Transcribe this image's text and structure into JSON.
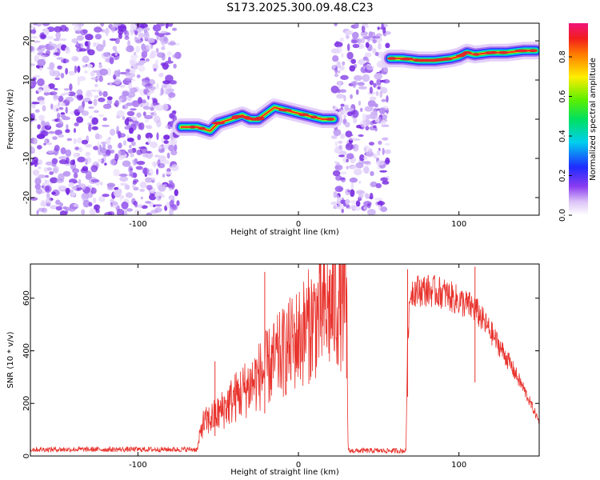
{
  "title": "S173.2025.300.09.48.C23",
  "chart_data": [
    {
      "type": "heatmap",
      "name": "spectrogram",
      "xlabel": "Height of straight line (km)",
      "ylabel": "Frequency (Hz)",
      "xlim": [
        -167,
        150
      ],
      "ylim": [
        -24.5,
        24.5
      ],
      "xticks": [
        -100,
        0,
        100
      ],
      "yticks": [
        -20,
        -10,
        0,
        10,
        20
      ],
      "noise_regions": [
        [
          -167,
          -75
        ],
        [
          22,
          56
        ]
      ],
      "signal_segments": [
        {
          "x": [
            -73,
            -63,
            -55,
            -50,
            -42,
            -35,
            -30,
            -25,
            -15,
            -5,
            5,
            15,
            22
          ],
          "y": [
            -2,
            -2,
            -3,
            -1,
            0,
            1,
            0,
            0,
            3,
            2,
            1,
            0,
            0
          ]
        },
        {
          "x": [
            57,
            65,
            75,
            85,
            95,
            100,
            105,
            110,
            120,
            130,
            140,
            148
          ],
          "y": [
            15.5,
            15.5,
            15,
            15,
            15.5,
            16,
            17,
            16.5,
            17,
            17,
            17.5,
            17.5
          ]
        }
      ],
      "colorbar": {
        "label": "Normalized spectral amplitude",
        "ticks": [
          0.0,
          0.2,
          0.4,
          0.6,
          0.8
        ],
        "range": [
          0.0,
          0.97
        ]
      }
    },
    {
      "type": "line",
      "name": "snr",
      "xlabel": "Height of straight line (km)",
      "ylabel": "SNR (10 * v/v)",
      "xlim": [
        -167,
        150
      ],
      "ylim": [
        0,
        730
      ],
      "xticks": [
        -100,
        0,
        100
      ],
      "yticks": [
        0,
        200,
        400,
        600
      ],
      "color": "#e8322c",
      "series": [
        {
          "name": "SNR",
          "x": [
            -167,
            -100,
            -63,
            -60,
            -50,
            -40,
            -30,
            -20,
            -10,
            0,
            10,
            20,
            25,
            30,
            31,
            32,
            40,
            60,
            67,
            68,
            70,
            80,
            90,
            100,
            110,
            120,
            130,
            140,
            150
          ],
          "y": [
            25,
            25,
            25,
            120,
            160,
            220,
            270,
            330,
            390,
            450,
            520,
            560,
            580,
            590,
            20,
            20,
            20,
            20,
            20,
            450,
            630,
            630,
            620,
            590,
            560,
            470,
            370,
            260,
            130
          ]
        }
      ],
      "spikes": [
        {
          "x": -52,
          "y": 360
        },
        {
          "x": -21,
          "y": 700
        },
        {
          "x": 30,
          "y": 640
        },
        {
          "x": 68,
          "y": 710
        },
        {
          "x": 110,
          "y": 720
        }
      ]
    }
  ]
}
